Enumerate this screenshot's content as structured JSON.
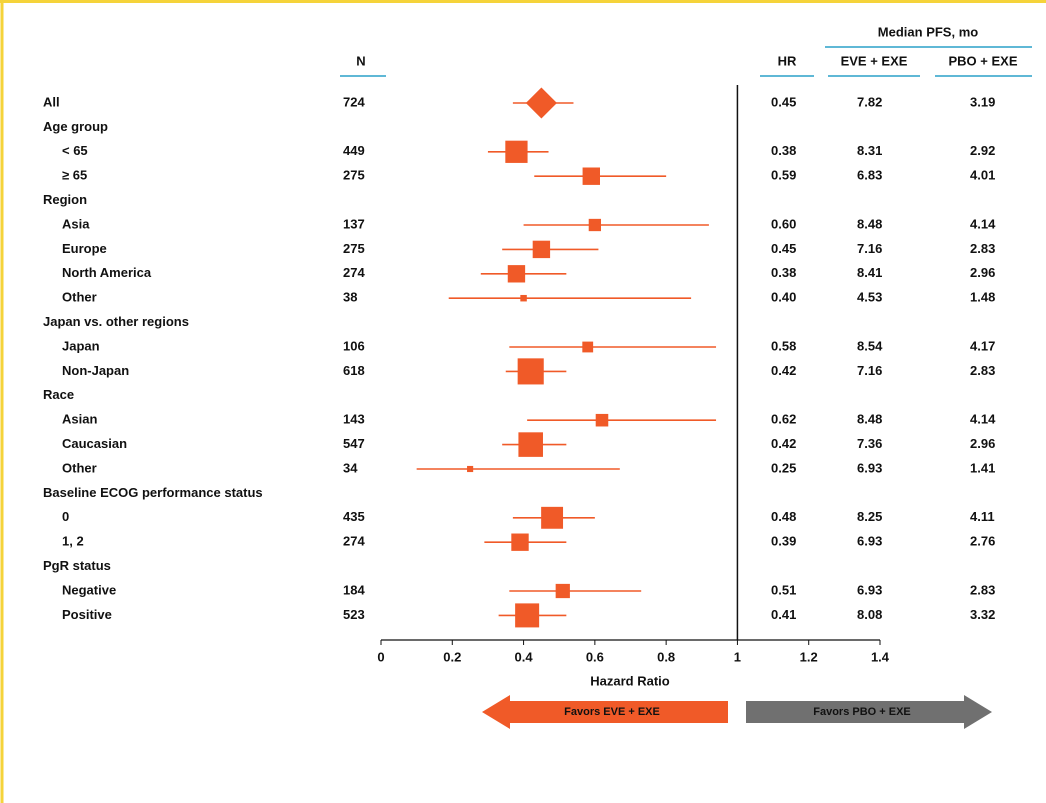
{
  "chart_data": {
    "type": "forest",
    "columns": {
      "n": "N",
      "hr": "HR",
      "pfs_group": "Median PFS, mo",
      "eve": "EVE + EXE",
      "pbo": "PBO + EXE"
    },
    "rows": [
      {
        "label": "All",
        "n": 724,
        "hr": 0.45,
        "ci": [
          0.37,
          0.54
        ],
        "pfs_eve": 7.82,
        "pfs_pbo": 3.19,
        "marker": "diamond"
      },
      {
        "label": "Age group"
      },
      {
        "label": "< 65",
        "n": 449,
        "hr": 0.38,
        "ci": [
          0.3,
          0.47
        ],
        "pfs_eve": 8.31,
        "pfs_pbo": 2.92
      },
      {
        "label": "≥ 65",
        "n": 275,
        "hr": 0.59,
        "ci": [
          0.43,
          0.8
        ],
        "pfs_eve": 6.83,
        "pfs_pbo": 4.01
      },
      {
        "label": "Region"
      },
      {
        "label": "Asia",
        "n": 137,
        "hr": 0.6,
        "hr_label": "0.60",
        "ci": [
          0.4,
          0.92
        ],
        "pfs_eve": 8.48,
        "pfs_pbo": 4.14
      },
      {
        "label": "Europe",
        "n": 275,
        "hr": 0.45,
        "ci": [
          0.34,
          0.61
        ],
        "pfs_eve": 7.16,
        "pfs_pbo": 2.83
      },
      {
        "label": "North America",
        "n": 274,
        "hr": 0.38,
        "ci": [
          0.28,
          0.52
        ],
        "pfs_eve": 8.41,
        "pfs_pbo": 2.96
      },
      {
        "label": "Other",
        "n": 38,
        "hr": 0.4,
        "hr_label": "0.40",
        "ci": [
          0.19,
          0.87
        ],
        "pfs_eve": 4.53,
        "pfs_pbo": 1.48
      },
      {
        "label": "Japan vs. other regions"
      },
      {
        "label": "Japan",
        "n": 106,
        "hr": 0.58,
        "ci": [
          0.36,
          0.94
        ],
        "pfs_eve": 8.54,
        "pfs_pbo": 4.17
      },
      {
        "label": "Non-Japan",
        "n": 618,
        "hr": 0.42,
        "ci": [
          0.35,
          0.52
        ],
        "pfs_eve": 7.16,
        "pfs_pbo": 2.83
      },
      {
        "label": "Race"
      },
      {
        "label": "Asian",
        "n": 143,
        "hr": 0.62,
        "ci": [
          0.41,
          0.94
        ],
        "pfs_eve": 8.48,
        "pfs_pbo": 4.14
      },
      {
        "label": "Caucasian",
        "n": 547,
        "hr": 0.42,
        "ci": [
          0.34,
          0.52
        ],
        "pfs_eve": 7.36,
        "pfs_pbo": 2.96
      },
      {
        "label": "Other",
        "n": 34,
        "hr": 0.25,
        "ci": [
          0.1,
          0.67
        ],
        "pfs_eve": 6.93,
        "pfs_pbo": 1.41
      },
      {
        "label": "Baseline ECOG performance status"
      },
      {
        "label": "0",
        "n": 435,
        "hr": 0.48,
        "ci": [
          0.37,
          0.6
        ],
        "pfs_eve": 8.25,
        "pfs_pbo": 4.11
      },
      {
        "label": "1, 2",
        "n": 274,
        "hr": 0.39,
        "ci": [
          0.29,
          0.52
        ],
        "pfs_eve": 6.93,
        "pfs_pbo": 2.76
      },
      {
        "label": "PgR status"
      },
      {
        "label": "Negative",
        "n": 184,
        "hr": 0.51,
        "ci": [
          0.36,
          0.73
        ],
        "pfs_eve": 6.93,
        "pfs_pbo": 2.83
      },
      {
        "label": "Positive",
        "n": 523,
        "hr": 0.41,
        "ci": [
          0.33,
          0.52
        ],
        "pfs_eve": 8.08,
        "pfs_pbo": 3.32
      }
    ],
    "xlabel": "Hazard Ratio",
    "xlim": [
      0,
      1.4
    ],
    "xticks": [
      0,
      0.2,
      0.4,
      0.6,
      0.8,
      1,
      1.2,
      1.4
    ],
    "reference_line": 1,
    "favors_left": "Favors EVE + EXE",
    "favors_right": "Favors PBO + EXE",
    "color": "#f05a28",
    "favors_right_color": "#707070"
  }
}
